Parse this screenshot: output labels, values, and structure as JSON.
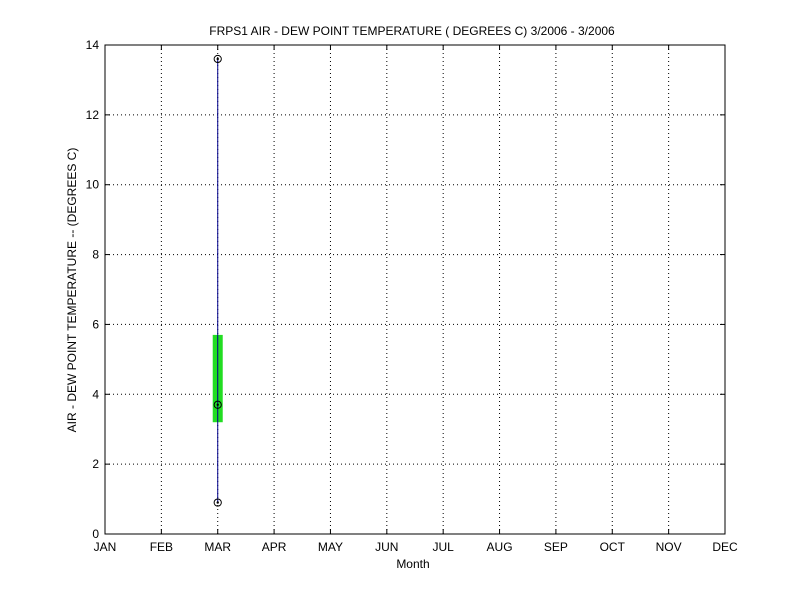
{
  "chart_data": {
    "type": "box",
    "title": "FRPS1  AIR - DEW POINT TEMPERATURE ( DEGREES C) 3/2006 - 3/2006",
    "xlabel": "Month",
    "ylabel": "AIR - DEW POINT TEMPERATURE -- (DEGREES C)",
    "categories": [
      "JAN",
      "FEB",
      "MAR",
      "APR",
      "MAY",
      "JUN",
      "JUL",
      "AUG",
      "SEP",
      "OCT",
      "NOV",
      "DEC"
    ],
    "ylim": [
      0,
      14
    ],
    "yticks": [
      0,
      2,
      4,
      6,
      8,
      10,
      12,
      14
    ],
    "grid": true,
    "colors": {
      "whisker": "#00008b",
      "box": "#22dd22",
      "marker": "#000000"
    },
    "series": [
      {
        "category": "MAR",
        "min": 0.9,
        "q1": 3.2,
        "median": 3.7,
        "q3": 5.7,
        "max": 13.6
      }
    ]
  }
}
